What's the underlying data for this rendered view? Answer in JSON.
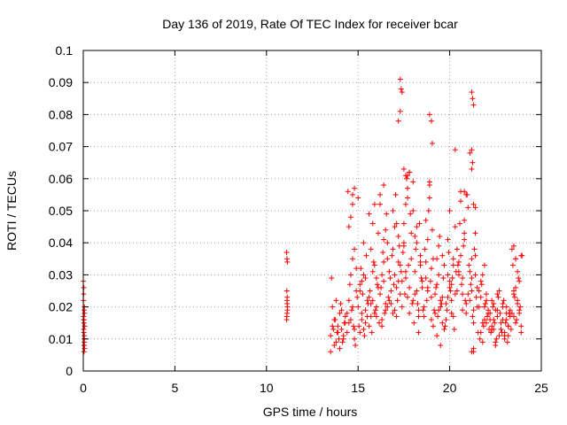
{
  "chart_data": {
    "type": "scatter",
    "title": "Day 136 of 2019, Rate Of TEC Index for receiver bcar",
    "xlabel": "GPS time / hours",
    "ylabel": "ROTI / TECUs",
    "xlim": [
      0,
      25
    ],
    "ylim": [
      0,
      0.1
    ],
    "x_ticks": [
      0,
      5,
      10,
      15,
      20,
      25
    ],
    "x_tick_labels": [
      "0",
      "5",
      "10",
      "15",
      "20",
      "25"
    ],
    "y_ticks": [
      0,
      0.01,
      0.02,
      0.03,
      0.04,
      0.05,
      0.06,
      0.07,
      0.08,
      0.09,
      0.1
    ],
    "y_tick_labels": [
      "0",
      "0.01",
      "0.02",
      "0.03",
      "0.04",
      "0.05",
      "0.06",
      "0.07",
      "0.08",
      "0.09",
      "0.1"
    ],
    "grid": true,
    "marker": "+",
    "color": "#ff0000",
    "series": [
      {
        "x": [
          0.0,
          0.02,
          0.05,
          0.03,
          0.07,
          0.04,
          0.06,
          0.01,
          0.08,
          0.05,
          0.03,
          0.02,
          0.06,
          0.04,
          0.07,
          0.05,
          0.03,
          0.06,
          0.04,
          0.02,
          0.05,
          0.03,
          11.1,
          11.12,
          11.14,
          11.11,
          11.13,
          11.15,
          11.12,
          11.1,
          11.14,
          11.13,
          11.11,
          11.12,
          13.5,
          13.6,
          13.7,
          13.8,
          13.9,
          14.0,
          14.1,
          14.2,
          14.3,
          13.5,
          13.6,
          13.7,
          13.8,
          13.9,
          14.0,
          14.1,
          14.2,
          14.3,
          13.55,
          13.65,
          13.75,
          13.85,
          13.95,
          14.05,
          14.15,
          14.25,
          14.4,
          14.5,
          14.6,
          14.7,
          14.8,
          14.9,
          14.4,
          14.5,
          14.6,
          14.7,
          14.8,
          14.9,
          14.45,
          14.55,
          14.65,
          14.75,
          14.85,
          14.95,
          14.5,
          14.6,
          14.7,
          14.8,
          15.0,
          15.1,
          15.2,
          15.3,
          15.4,
          15.5,
          15.0,
          15.1,
          15.2,
          15.3,
          15.4,
          15.5,
          15.05,
          15.15,
          15.25,
          15.35,
          15.45,
          15.55,
          15.1,
          15.2,
          15.3,
          15.4,
          15.6,
          15.7,
          15.8,
          15.9,
          16.0,
          16.1,
          15.6,
          15.7,
          15.8,
          15.9,
          16.0,
          16.1,
          15.65,
          15.75,
          15.85,
          15.95,
          16.05,
          16.15,
          15.7,
          15.8,
          15.9,
          16.0,
          16.2,
          16.3,
          16.4,
          16.5,
          16.6,
          16.7,
          16.2,
          16.3,
          16.4,
          16.5,
          16.6,
          16.7,
          16.25,
          16.35,
          16.45,
          16.55,
          16.65,
          16.75,
          16.3,
          16.4,
          16.5,
          16.6,
          16.8,
          16.9,
          17.0,
          17.1,
          17.2,
          17.3,
          16.8,
          16.9,
          17.0,
          17.1,
          17.2,
          17.3,
          16.85,
          16.95,
          17.05,
          17.15,
          17.25,
          17.35,
          16.9,
          17.0,
          17.1,
          17.2,
          17.4,
          17.5,
          17.6,
          17.7,
          17.8,
          17.9,
          17.4,
          17.5,
          17.6,
          17.7,
          17.8,
          17.9,
          17.45,
          17.55,
          17.65,
          17.75,
          17.85,
          17.95,
          17.5,
          17.6,
          17.7,
          17.8,
          18.0,
          18.1,
          18.2,
          18.3,
          18.4,
          18.5,
          18.0,
          18.1,
          18.2,
          18.3,
          18.4,
          18.5,
          18.05,
          18.15,
          18.25,
          18.35,
          18.45,
          18.55,
          18.1,
          18.2,
          18.3,
          18.4,
          18.6,
          18.7,
          18.8,
          18.9,
          19.0,
          19.1,
          18.6,
          18.7,
          18.8,
          18.9,
          19.0,
          19.1,
          18.65,
          18.75,
          18.85,
          18.95,
          19.05,
          19.15,
          18.7,
          18.8,
          18.9,
          19.0,
          19.2,
          19.3,
          19.4,
          19.5,
          19.6,
          19.7,
          19.2,
          19.3,
          19.4,
          19.5,
          19.6,
          19.7,
          19.25,
          19.35,
          19.45,
          19.55,
          19.65,
          19.75,
          19.3,
          19.4,
          19.5,
          19.6,
          19.8,
          19.9,
          20.0,
          20.1,
          20.2,
          20.3,
          19.8,
          19.9,
          20.0,
          20.1,
          20.2,
          20.3,
          19.85,
          19.95,
          20.05,
          20.15,
          20.25,
          20.35,
          19.9,
          20.0,
          20.1,
          20.2,
          20.4,
          20.5,
          20.6,
          20.7,
          20.8,
          20.9,
          20.4,
          20.5,
          20.6,
          20.7,
          20.8,
          20.9,
          20.45,
          20.55,
          20.65,
          20.75,
          20.85,
          20.95,
          20.5,
          20.6,
          20.7,
          20.8,
          21.0,
          21.1,
          21.2,
          21.3,
          21.4,
          21.5,
          21.0,
          21.1,
          21.2,
          21.3,
          21.4,
          21.5,
          21.05,
          21.15,
          21.25,
          21.35,
          21.45,
          21.55,
          21.1,
          21.2,
          21.3,
          21.4,
          21.6,
          21.7,
          21.8,
          21.9,
          22.0,
          22.1,
          21.6,
          21.7,
          21.8,
          21.9,
          22.0,
          22.1,
          21.65,
          21.75,
          21.85,
          21.95,
          22.05,
          22.15,
          21.7,
          21.8,
          21.9,
          22.0,
          22.2,
          22.3,
          22.4,
          22.5,
          22.6,
          22.7,
          22.2,
          22.3,
          22.4,
          22.5,
          22.6,
          22.7,
          22.25,
          22.35,
          22.45,
          22.55,
          22.65,
          22.75,
          22.3,
          22.4,
          22.5,
          22.6,
          22.8,
          22.9,
          23.0,
          23.1,
          23.2,
          23.3,
          22.8,
          22.9,
          23.0,
          23.1,
          23.2,
          23.3,
          22.85,
          22.95,
          23.05,
          23.15,
          23.25,
          23.35,
          22.9,
          23.0,
          23.1,
          23.2,
          23.4,
          23.5,
          23.6,
          23.7,
          23.8,
          23.9,
          23.4,
          23.5,
          23.6,
          23.7,
          23.8,
          23.9,
          23.45,
          23.55,
          23.65,
          23.75,
          23.85,
          23.95,
          23.5,
          23.6,
          23.7,
          23.8,
          17.3,
          17.35,
          17.4,
          17.3,
          18.9,
          19.0,
          19.05,
          21.2,
          21.25,
          21.3,
          21.2,
          21.25,
          20.3,
          21.2,
          17.5,
          17.6,
          17.7,
          18.0,
          17.2,
          17.8,
          14.8,
          14.7,
          16.4,
          15.6,
          16.2,
          20.8,
          20.9,
          21.3,
          21.4,
          23.5,
          23.6,
          23.9,
          21.2,
          21.3
        ],
        "y": [
          0.028,
          0.016,
          0.008,
          0.012,
          0.018,
          0.006,
          0.02,
          0.022,
          0.014,
          0.01,
          0.026,
          0.017,
          0.009,
          0.015,
          0.007,
          0.019,
          0.013,
          0.011,
          0.016,
          0.024,
          0.008,
          0.016,
          0.037,
          0.035,
          0.034,
          0.025,
          0.023,
          0.02,
          0.018,
          0.016,
          0.019,
          0.021,
          0.017,
          0.022,
          0.011,
          0.014,
          0.016,
          0.009,
          0.012,
          0.018,
          0.013,
          0.01,
          0.015,
          0.006,
          0.02,
          0.008,
          0.022,
          0.014,
          0.007,
          0.019,
          0.011,
          0.017,
          0.029,
          0.013,
          0.016,
          0.012,
          0.01,
          0.021,
          0.009,
          0.015,
          0.018,
          0.022,
          0.048,
          0.055,
          0.038,
          0.025,
          0.012,
          0.015,
          0.03,
          0.02,
          0.01,
          0.032,
          0.056,
          0.027,
          0.019,
          0.014,
          0.008,
          0.023,
          0.045,
          0.016,
          0.035,
          0.013,
          0.02,
          0.025,
          0.018,
          0.03,
          0.015,
          0.022,
          0.054,
          0.012,
          0.028,
          0.04,
          0.019,
          0.017,
          0.014,
          0.032,
          0.024,
          0.011,
          0.036,
          0.021,
          0.027,
          0.016,
          0.013,
          0.029,
          0.023,
          0.017,
          0.031,
          0.052,
          0.02,
          0.026,
          0.014,
          0.038,
          0.022,
          0.018,
          0.029,
          0.043,
          0.025,
          0.012,
          0.034,
          0.019,
          0.027,
          0.015,
          0.021,
          0.046,
          0.033,
          0.017,
          0.024,
          0.03,
          0.041,
          0.019,
          0.035,
          0.022,
          0.055,
          0.016,
          0.028,
          0.044,
          0.02,
          0.031,
          0.026,
          0.037,
          0.018,
          0.049,
          0.023,
          0.029,
          0.014,
          0.034,
          0.021,
          0.04,
          0.025,
          0.038,
          0.019,
          0.046,
          0.028,
          0.033,
          0.021,
          0.05,
          0.03,
          0.017,
          0.042,
          0.024,
          0.036,
          0.027,
          0.055,
          0.022,
          0.039,
          0.031,
          0.018,
          0.045,
          0.026,
          0.034,
          0.028,
          0.04,
          0.052,
          0.023,
          0.062,
          0.035,
          0.02,
          0.046,
          0.031,
          0.057,
          0.026,
          0.043,
          0.037,
          0.024,
          0.06,
          0.033,
          0.049,
          0.021,
          0.039,
          0.029,
          0.054,
          0.018,
          0.022,
          0.031,
          0.045,
          0.019,
          0.036,
          0.026,
          0.05,
          0.024,
          0.04,
          0.017,
          0.033,
          0.028,
          0.015,
          0.038,
          0.021,
          0.046,
          0.029,
          0.019,
          0.042,
          0.025,
          0.012,
          0.034,
          0.02,
          0.029,
          0.041,
          0.054,
          0.023,
          0.035,
          0.017,
          0.047,
          0.026,
          0.059,
          0.032,
          0.014,
          0.038,
          0.022,
          0.05,
          0.028,
          0.044,
          0.019,
          0.034,
          0.025,
          0.058,
          0.016,
          0.018,
          0.027,
          0.039,
          0.022,
          0.015,
          0.033,
          0.024,
          0.011,
          0.03,
          0.02,
          0.036,
          0.013,
          0.026,
          0.017,
          0.042,
          0.021,
          0.029,
          0.014,
          0.035,
          0.019,
          0.008,
          0.023,
          0.021,
          0.03,
          0.026,
          0.018,
          0.035,
          0.024,
          0.016,
          0.041,
          0.028,
          0.022,
          0.033,
          0.045,
          0.019,
          0.037,
          0.025,
          0.029,
          0.013,
          0.031,
          0.023,
          0.05,
          0.027,
          0.017,
          0.025,
          0.034,
          0.056,
          0.029,
          0.047,
          0.021,
          0.038,
          0.031,
          0.053,
          0.024,
          0.043,
          0.018,
          0.033,
          0.046,
          0.027,
          0.039,
          0.022,
          0.055,
          0.03,
          0.036,
          0.019,
          0.041,
          0.024,
          0.068,
          0.035,
          0.019,
          0.03,
          0.026,
          0.051,
          0.022,
          0.029,
          0.015,
          0.043,
          0.02,
          0.033,
          0.027,
          0.017,
          0.038,
          0.023,
          0.012,
          0.031,
          0.025,
          0.007,
          0.036,
          0.02,
          0.028,
          0.015,
          0.033,
          0.022,
          0.018,
          0.025,
          0.012,
          0.03,
          0.016,
          0.024,
          0.019,
          0.01,
          0.027,
          0.014,
          0.021,
          0.017,
          0.013,
          0.023,
          0.009,
          0.02,
          0.015,
          0.016,
          0.022,
          0.013,
          0.019,
          0.024,
          0.011,
          0.018,
          0.014,
          0.021,
          0.009,
          0.017,
          0.025,
          0.012,
          0.02,
          0.015,
          0.01,
          0.023,
          0.018,
          0.013,
          0.016,
          0.008,
          0.019,
          0.015,
          0.021,
          0.012,
          0.018,
          0.011,
          0.017,
          0.013,
          0.02,
          0.01,
          0.016,
          0.014,
          0.019,
          0.012,
          0.022,
          0.015,
          0.009,
          0.018,
          0.013,
          0.016,
          0.011,
          0.02,
          0.014,
          0.018,
          0.024,
          0.035,
          0.021,
          0.028,
          0.014,
          0.038,
          0.017,
          0.026,
          0.031,
          0.019,
          0.012,
          0.033,
          0.023,
          0.016,
          0.029,
          0.02,
          0.036,
          0.025,
          0.015,
          0.022,
          0.018,
          0.091,
          0.088,
          0.087,
          0.081,
          0.08,
          0.078,
          0.071,
          0.087,
          0.085,
          0.083,
          0.069,
          0.065,
          0.069,
          0.063,
          0.063,
          0.061,
          0.061,
          0.059,
          0.078,
          0.062,
          0.057,
          0.052,
          0.058,
          0.049,
          0.052,
          0.056,
          0.055,
          0.052,
          0.051,
          0.039,
          0.035,
          0.036,
          0.006,
          0.006
        ]
      }
    ]
  }
}
